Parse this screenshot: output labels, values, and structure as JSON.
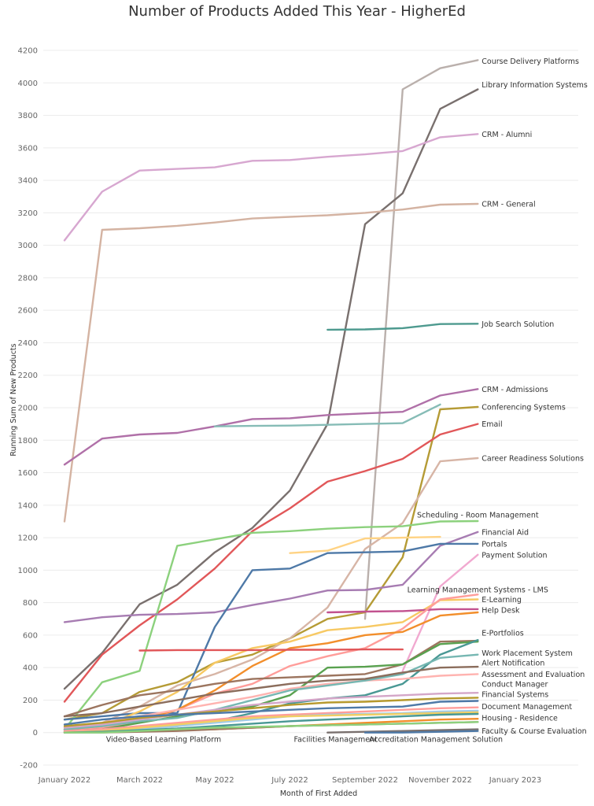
{
  "chart_data": {
    "type": "line",
    "title": "Number of Products Added This Year - HigherEd",
    "xlabel": "Month of First Added",
    "ylabel": "Running Sum of New Products",
    "ylim": [
      -200,
      4300
    ],
    "yticks": [
      -200,
      0,
      200,
      400,
      600,
      800,
      1000,
      1200,
      1400,
      1600,
      1800,
      2000,
      2200,
      2400,
      2600,
      2800,
      3000,
      3200,
      3400,
      3600,
      3800,
      4000,
      4200
    ],
    "xlim": [
      "2021-12",
      "2023-02"
    ],
    "xticks": [
      {
        "value": "2022-01",
        "label": "January 2022"
      },
      {
        "value": "2022-03",
        "label": "March 2022"
      },
      {
        "value": "2022-05",
        "label": "May 2022"
      },
      {
        "value": "2022-07",
        "label": "July 2022"
      },
      {
        "value": "2022-09",
        "label": "September 2022"
      },
      {
        "value": "2022-11",
        "label": "November 2022"
      },
      {
        "value": "2023-01",
        "label": "January 2023"
      }
    ],
    "x": [
      "2022-01",
      "2022-02",
      "2022-03",
      "2022-04",
      "2022-05",
      "2022-06",
      "2022-07",
      "2022-08",
      "2022-09",
      "2022-10",
      "2022-11",
      "2022-12"
    ],
    "grid": "horizontal",
    "legend": "none",
    "series": [
      {
        "name": "Course Delivery Platforms",
        "color": "#bab0ac",
        "values": [
          null,
          null,
          null,
          null,
          null,
          null,
          null,
          null,
          700,
          3960,
          4090,
          4140
        ]
      },
      {
        "name": "Library Information Systems",
        "color": "#79706e",
        "values": [
          270,
          490,
          790,
          910,
          1110,
          1260,
          1490,
          1900,
          3130,
          3320,
          3840,
          3960
        ]
      },
      {
        "name": "CRM - Alumni",
        "color": "#d7a7d0",
        "values": [
          3030,
          3330,
          3460,
          3470,
          3480,
          3520,
          3525,
          3545,
          3560,
          3580,
          3665,
          3685
        ]
      },
      {
        "name": "CRM - General",
        "color": "#d4b3a2",
        "values": [
          1300,
          3095,
          3105,
          3120,
          3140,
          3165,
          3175,
          3185,
          3200,
          3220,
          3250,
          3255
        ]
      },
      {
        "name": "Job Search Solution",
        "color": "#4e9a8f",
        "values": [
          null,
          null,
          null,
          null,
          null,
          null,
          null,
          2480,
          2482,
          2490,
          2515,
          2517
        ]
      },
      {
        "name": "CRM - Admissions",
        "color": "#b070a8",
        "values": [
          1650,
          1810,
          1835,
          1845,
          1885,
          1930,
          1935,
          1955,
          1965,
          1975,
          2075,
          2115
        ]
      },
      {
        "name": "",
        "color": "#86bcb6",
        "values": [
          null,
          null,
          null,
          null,
          1885,
          1888,
          1890,
          1895,
          1900,
          1905,
          2020,
          null
        ]
      },
      {
        "name": "Conferencing Systems",
        "color": "#b59b35",
        "values": [
          80,
          120,
          250,
          310,
          430,
          480,
          580,
          700,
          740,
          1080,
          1990,
          2005
        ]
      },
      {
        "name": "Email",
        "color": "#e15759",
        "values": [
          190,
          480,
          660,
          820,
          1010,
          1240,
          1380,
          1545,
          1610,
          1685,
          1835,
          1900
        ]
      },
      {
        "name": "Career Readiness Solutions",
        "color": "#d7b5a6",
        "values": [
          20,
          60,
          160,
          290,
          360,
          450,
          580,
          770,
          1130,
          1290,
          1670,
          1690
        ]
      },
      {
        "name": "Scheduling - Room Management",
        "color": "#8cd17d",
        "values": [
          20,
          310,
          380,
          1150,
          1190,
          1230,
          1240,
          1255,
          1265,
          1270,
          1300,
          1302
        ]
      },
      {
        "name": "Financial Aid",
        "color": "#a77cb2",
        "values": [
          680,
          710,
          725,
          730,
          740,
          785,
          825,
          875,
          878,
          910,
          1150,
          1235
        ]
      },
      {
        "name": "Portals",
        "color": "#4e79a7",
        "values": [
          80,
          100,
          120,
          120,
          650,
          1000,
          1010,
          1105,
          1110,
          1115,
          1162,
          1162
        ]
      },
      {
        "name": "Payment Solution",
        "color": "#f1a9d0",
        "values": [
          null,
          null,
          null,
          null,
          null,
          null,
          null,
          null,
          null,
          380,
          900,
          1095
        ]
      },
      {
        "name": "Learning Management Systems - LMS",
        "color": "#ffd384",
        "values": [
          null,
          null,
          null,
          null,
          null,
          null,
          1105,
          1120,
          1195,
          1200,
          1205,
          null
        ]
      },
      {
        "name": "E-Learning",
        "color": "#f7c963",
        "values": [
          20,
          40,
          130,
          250,
          430,
          520,
          560,
          630,
          650,
          680,
          815,
          820
        ]
      },
      {
        "name": "Help Desk",
        "color": "#c2528f",
        "values": [
          null,
          null,
          null,
          null,
          null,
          null,
          null,
          740,
          745,
          748,
          760,
          760
        ]
      },
      {
        "name": "",
        "color": "#ff9d9a",
        "values": [
          10,
          30,
          70,
          140,
          240,
          300,
          410,
          470,
          520,
          640,
          820,
          850
        ]
      },
      {
        "name": "",
        "color": "#f28e2b",
        "values": [
          20,
          40,
          80,
          140,
          260,
          410,
          520,
          550,
          600,
          620,
          720,
          740
        ]
      },
      {
        "name": "E-Portfolios",
        "color": "#9c755f",
        "values": [
          100,
          170,
          230,
          260,
          300,
          330,
          340,
          350,
          360,
          420,
          560,
          565
        ]
      },
      {
        "name": "",
        "color": "#e15759",
        "values": [
          null,
          null,
          505,
          508,
          508,
          508,
          510,
          510,
          512,
          512,
          null,
          null
        ]
      },
      {
        "name": "Work Placement System",
        "color": "#59a14f",
        "values": [
          10,
          20,
          60,
          100,
          130,
          160,
          230,
          400,
          405,
          420,
          545,
          560
        ]
      },
      {
        "name": "Alert Notification",
        "color": "#499894",
        "values": [
          5,
          15,
          25,
          40,
          70,
          120,
          180,
          210,
          230,
          300,
          480,
          570
        ]
      },
      {
        "name": "Assessment and Evaluation",
        "color": "#ffb3b0",
        "values": [
          30,
          60,
          100,
          140,
          180,
          220,
          270,
          300,
          320,
          330,
          350,
          360
        ]
      },
      {
        "name": "Conduct Manager",
        "color": "#76b7b2",
        "values": [
          20,
          40,
          70,
          90,
          140,
          200,
          260,
          290,
          320,
          360,
          460,
          480
        ]
      },
      {
        "name": "",
        "color": "#8b6d5c",
        "values": [
          100,
          120,
          160,
          200,
          240,
          270,
          300,
          320,
          330,
          370,
          400,
          405
        ]
      },
      {
        "name": "Financial Systems",
        "color": "#d4a6c8",
        "values": [
          30,
          50,
          80,
          110,
          140,
          170,
          190,
          210,
          220,
          230,
          240,
          245
        ]
      },
      {
        "name": "Document Management",
        "color": "#b6992d",
        "values": [
          40,
          60,
          90,
          110,
          130,
          150,
          170,
          185,
          190,
          200,
          210,
          215
        ]
      },
      {
        "name": "",
        "color": "#4e79a7",
        "values": [
          50,
          80,
          100,
          110,
          120,
          130,
          140,
          150,
          155,
          160,
          190,
          195
        ]
      },
      {
        "name": "Housing - Residence",
        "color": "#ff9d9a",
        "values": [
          10,
          20,
          40,
          60,
          80,
          100,
          110,
          120,
          130,
          140,
          150,
          155
        ]
      },
      {
        "name": "",
        "color": "#a0cbe8",
        "values": [
          0,
          10,
          20,
          40,
          60,
          80,
          100,
          110,
          115,
          120,
          130,
          135
        ]
      },
      {
        "name": "",
        "color": "#f1ce63",
        "values": [
          0,
          10,
          30,
          50,
          70,
          90,
          100,
          105,
          110,
          115,
          120,
          125
        ]
      },
      {
        "name": "Faculty & Course Evaluation",
        "color": "#f28e2b",
        "values": [
          0,
          5,
          10,
          15,
          20,
          30,
          40,
          50,
          60,
          70,
          80,
          85
        ]
      },
      {
        "name": "",
        "color": "#499894",
        "values": [
          0,
          5,
          15,
          25,
          40,
          55,
          70,
          80,
          90,
          100,
          110,
          115
        ]
      },
      {
        "name": "",
        "color": "#9d7660",
        "values": [
          0,
          0,
          5,
          10,
          20,
          30,
          40,
          45,
          50,
          55,
          60,
          65
        ]
      },
      {
        "name": "Video-Based Learning Platform",
        "color": "#8cd17d",
        "values": [
          0,
          0,
          10,
          20,
          30,
          35,
          40,
          45,
          50,
          55,
          60,
          65
        ]
      },
      {
        "name": "Facilities Management",
        "color": "#79706e",
        "values": [
          null,
          null,
          null,
          null,
          null,
          null,
          null,
          0,
          5,
          10,
          15,
          20
        ]
      },
      {
        "name": "Accreditation Management Solution",
        "color": "#4e79a7",
        "values": [
          null,
          null,
          null,
          null,
          null,
          null,
          null,
          null,
          0,
          0,
          5,
          10
        ]
      }
    ],
    "labels": [
      {
        "text": "Course Delivery Platforms",
        "x": "2022-12",
        "y": 4135,
        "anchor": "start"
      },
      {
        "text": "Library Information Systems",
        "x": "2022-12",
        "y": 3990,
        "anchor": "start"
      },
      {
        "text": "CRM - Alumni",
        "x": "2022-12",
        "y": 3685,
        "anchor": "start"
      },
      {
        "text": "CRM - General",
        "x": "2022-12",
        "y": 3255,
        "anchor": "start"
      },
      {
        "text": "Job Search Solution",
        "x": "2022-12",
        "y": 2517,
        "anchor": "start"
      },
      {
        "text": "CRM - Admissions",
        "x": "2022-12",
        "y": 2115,
        "anchor": "start"
      },
      {
        "text": "Conferencing Systems",
        "x": "2022-12",
        "y": 2005,
        "anchor": "start"
      },
      {
        "text": "Email",
        "x": "2022-12",
        "y": 1900,
        "anchor": "start"
      },
      {
        "text": "Career Readiness Solutions",
        "x": "2022-12",
        "y": 1690,
        "anchor": "start"
      },
      {
        "text": "Scheduling - Room Management",
        "x": "2022-12",
        "y": 1340,
        "anchor": "middle"
      },
      {
        "text": "Financial Aid",
        "x": "2022-12",
        "y": 1235,
        "anchor": "start"
      },
      {
        "text": "Portals",
        "x": "2022-12",
        "y": 1162,
        "anchor": "start"
      },
      {
        "text": "Payment Solution",
        "x": "2022-12",
        "y": 1095,
        "anchor": "start"
      },
      {
        "text": "Learning Management Systems - LMS",
        "x": "2022-12",
        "y": 880,
        "anchor": "middle"
      },
      {
        "text": "E-Learning",
        "x": "2022-12",
        "y": 820,
        "anchor": "start"
      },
      {
        "text": "Help Desk",
        "x": "2022-12",
        "y": 755,
        "anchor": "start"
      },
      {
        "text": "E-Portfolios",
        "x": "2022-12",
        "y": 615,
        "anchor": "start"
      },
      {
        "text": "Work Placement System",
        "x": "2022-12",
        "y": 490,
        "anchor": "start"
      },
      {
        "text": "Alert Notification",
        "x": "2022-12",
        "y": 430,
        "anchor": "start"
      },
      {
        "text": "Assessment and Evaluation",
        "x": "2022-12",
        "y": 360,
        "anchor": "start"
      },
      {
        "text": "Conduct Manager",
        "x": "2022-12",
        "y": 300,
        "anchor": "start"
      },
      {
        "text": "Financial Systems",
        "x": "2022-12",
        "y": 235,
        "anchor": "start"
      },
      {
        "text": "Document Management",
        "x": "2022-12",
        "y": 160,
        "anchor": "start"
      },
      {
        "text": "Housing - Residence",
        "x": "2022-12",
        "y": 90,
        "anchor": "start"
      },
      {
        "text": "Faculty & Course Evaluation",
        "x": "2022-12",
        "y": 10,
        "anchor": "start"
      },
      {
        "text": "Video-Based Learning Platform",
        "x": "2022-02",
        "y": -40,
        "anchor": "start"
      },
      {
        "text": "Facilities Management",
        "x": "2022-07",
        "y": -40,
        "anchor": "start"
      },
      {
        "text": "Accreditation Management Solution",
        "x": "2022-09",
        "y": -40,
        "anchor": "start"
      }
    ]
  }
}
